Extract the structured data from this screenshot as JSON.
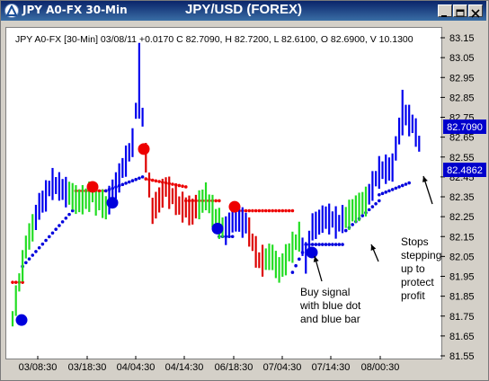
{
  "window": {
    "title": "JPY A0-FX 30-Min",
    "chart_title": "JPY/USD (FOREX)"
  },
  "header": {
    "ohlc_line": "JPY A0-FX [30-Min] 03/08/11   +0.0170 C 82.7090, H 82.7200, L 82.6100, O 82.6900, V 10.1300"
  },
  "annotations": {
    "buy_signal": [
      "Buy signal",
      "with blue dot",
      "and blue bar"
    ],
    "stops": [
      "Stops",
      "stepping",
      "up to",
      "protect",
      "profit"
    ]
  },
  "colors": {
    "up_bar": "#0000ee",
    "down_bar": "#dd0000",
    "neutral_bar": "#22dd22",
    "buy_dot": "#0000dd",
    "sell_dot": "#ee0000",
    "price_label_bg": "#0000cc"
  },
  "chart_data": {
    "type": "bar",
    "title": "JPY/USD (FOREX)",
    "x_ticks": [
      "03/08:30",
      "03/18:30",
      "04/04:30",
      "04/14:30",
      "06/18:30",
      "07/04:30",
      "07/14:30",
      "08/00:30"
    ],
    "y_ticks": [
      "83.15",
      "83.05",
      "82.95",
      "82.85",
      "82.75",
      "82.65",
      "82.55",
      "82.45",
      "82.35",
      "82.25",
      "82.15",
      "82.05",
      "81.95",
      "81.85",
      "81.75",
      "81.65",
      "81.55"
    ],
    "ylim": [
      81.55,
      83.15
    ],
    "last_price": "82.7090",
    "stop_price": "82.4862",
    "grid": false,
    "signals": [
      {
        "type": "buy",
        "price": 81.73
      },
      {
        "type": "sell",
        "price": 82.4
      },
      {
        "type": "buy",
        "price": 82.32
      },
      {
        "type": "sell",
        "price": 82.59
      },
      {
        "type": "buy",
        "price": 82.19
      },
      {
        "type": "sell",
        "price": 82.3
      },
      {
        "type": "buy",
        "price": 82.07
      }
    ]
  }
}
